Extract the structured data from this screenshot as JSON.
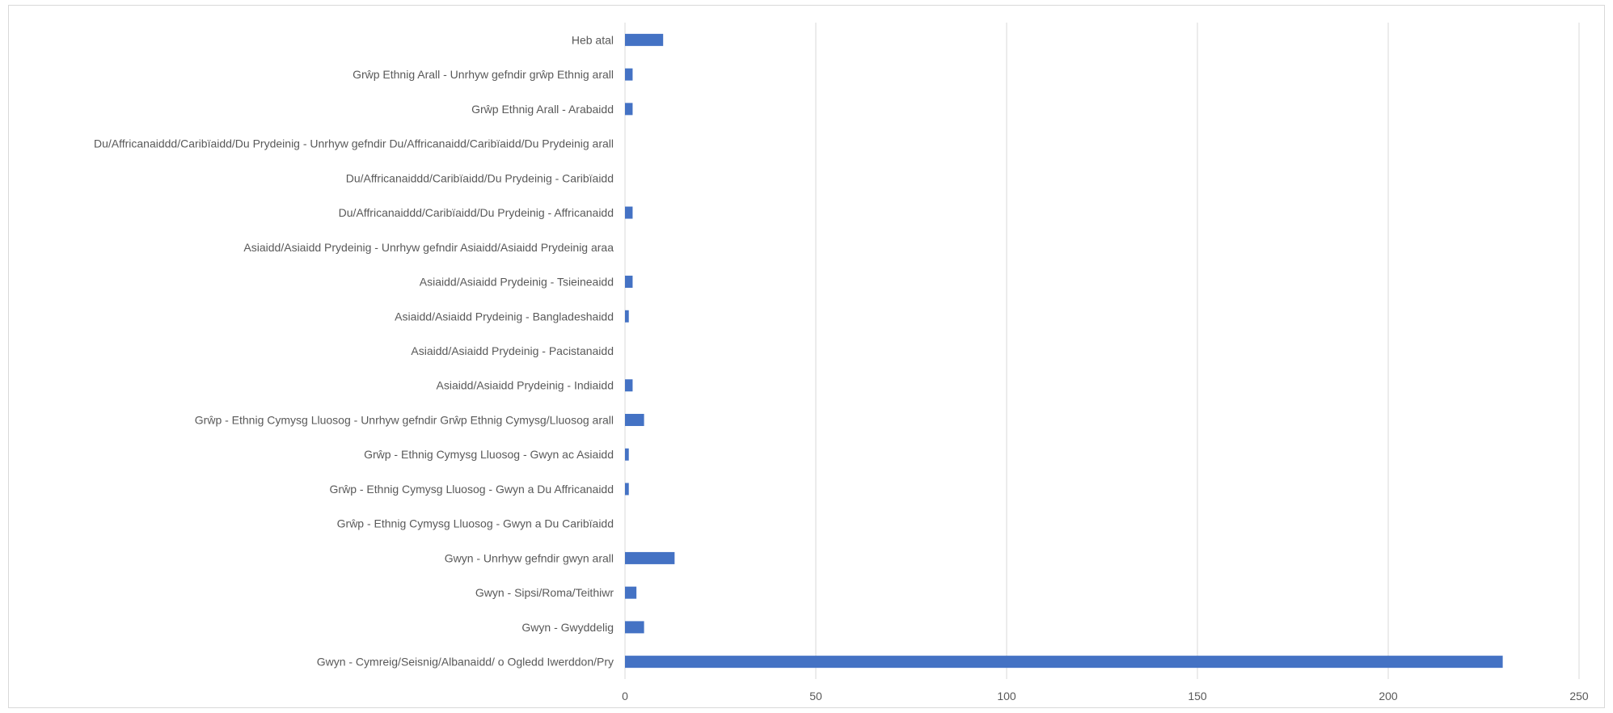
{
  "chart_data": {
    "type": "bar",
    "orientation": "horizontal",
    "categories": [
      "Heb atal",
      "Grŵp Ethnig Arall - Unrhyw gefndir grŵp Ethnig arall",
      "Grŵp Ethnig Arall - Arabaidd",
      "Du/Affricanaiddd/Caribïaidd/Du Prydeinig - Unrhyw gefndir Du/Affricanaidd/Caribïaidd/Du Prydeinig arall",
      "Du/Affricanaiddd/Caribïaidd/Du Prydeinig - Caribïaidd",
      "Du/Affricanaiddd/Caribïaidd/Du Prydeinig - Affricanaidd",
      "Asiaidd/Asiaidd Prydeinig - Unrhyw gefndir Asiaidd/Asiaidd Prydeinig araa",
      "Asiaidd/Asiaidd Prydeinig - Tsieineaidd",
      "Asiaidd/Asiaidd Prydeinig - Bangladeshaidd",
      "Asiaidd/Asiaidd Prydeinig - Pacistanaidd",
      "Asiaidd/Asiaidd Prydeinig - Indiaidd",
      "Grŵp - Ethnig Cymysg Lluosog - Unrhyw gefndir Grŵp Ethnig Cymysg/Lluosog arall",
      "Grŵp - Ethnig Cymysg Lluosog - Gwyn ac Asiaidd",
      "Grŵp - Ethnig Cymysg Lluosog - Gwyn a Du Affricanaidd",
      "Grŵp - Ethnig Cymysg Lluosog - Gwyn a Du Caribïaidd",
      "Gwyn - Unrhyw gefndir gwyn arall",
      "Gwyn - Sipsi/Roma/Teithiwr",
      "Gwyn - Gwyddelig",
      "Gwyn - Cymreig/Seisnig/Albanaidd/ o Ogledd Iwerddon/Pry"
    ],
    "values": [
      10,
      2,
      2,
      0,
      0,
      2,
      0,
      2,
      1,
      0,
      2,
      5,
      1,
      1,
      0,
      13,
      3,
      5,
      230
    ],
    "xlim": [
      0,
      250
    ],
    "xticks": [
      "0",
      "50",
      "100",
      "150",
      "200",
      "250"
    ],
    "title": "",
    "xlabel": "",
    "ylabel": "",
    "grid": "vertical",
    "bar_color": "#4472c4",
    "grid_color": "#d9d9d9"
  }
}
